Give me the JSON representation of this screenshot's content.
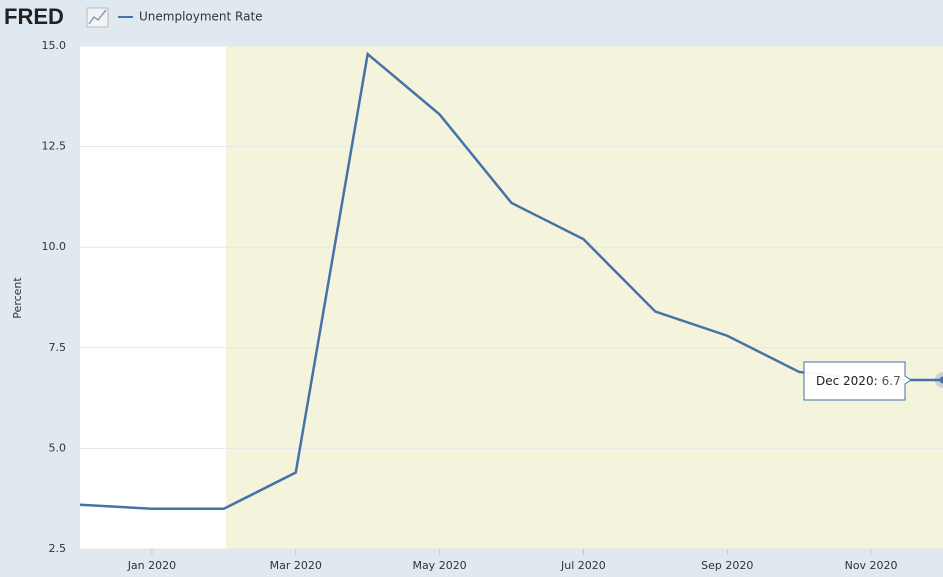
{
  "logo": "FRED",
  "chart_data": {
    "type": "line",
    "y_label": "Percent",
    "categories": [
      null,
      "Jan 2020",
      null,
      "Mar 2020",
      null,
      "May 2020",
      null,
      "Jul 2020",
      null,
      "Sep 2020",
      null,
      "Nov 2020",
      null
    ],
    "series": [
      {
        "name": "Unemployment Rate",
        "color": "#4572a7",
        "values": [
          3.6,
          3.5,
          3.5,
          4.4,
          14.8,
          13.3,
          11.1,
          10.2,
          8.4,
          7.8,
          6.9,
          6.7,
          6.7
        ]
      }
    ],
    "ylim": [
      2.5,
      15
    ],
    "yticks": [
      {
        "value": 2.5,
        "label": "2.5"
      },
      {
        "value": 5,
        "label": "5.0"
      },
      {
        "value": 7.5,
        "label": "7.5"
      },
      {
        "value": 10,
        "label": "10.0"
      },
      {
        "value": 12.5,
        "label": "12.5"
      },
      {
        "value": 15,
        "label": "15.0"
      }
    ],
    "grid": true,
    "tooltip": {
      "label": "Dec 2020:"
    }
  }
}
